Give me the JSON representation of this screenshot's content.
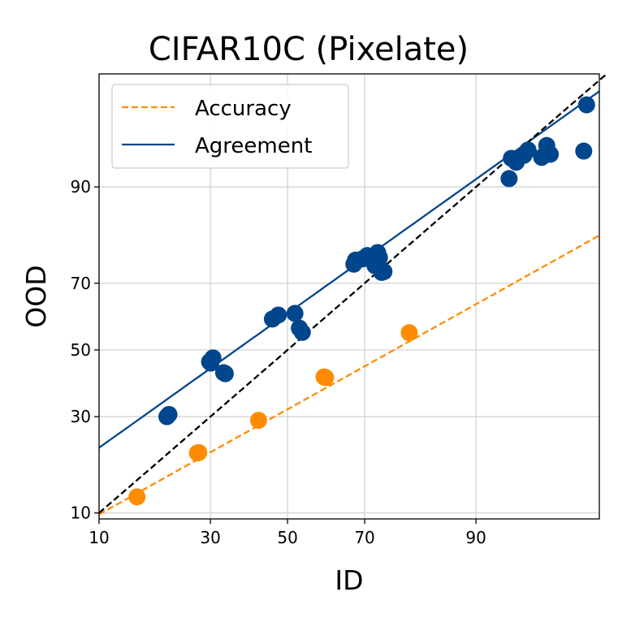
{
  "chart_data": {
    "type": "scatter",
    "title": "CIFAR10C (Pixelate)",
    "xlabel": "ID",
    "ylabel": "OOD",
    "scale": "probit",
    "xticks": [
      10,
      30,
      50,
      70,
      90
    ],
    "yticks": [
      10,
      30,
      50,
      70,
      90
    ],
    "xlim": [
      10,
      98.3
    ],
    "ylim": [
      9.2,
      98.5
    ],
    "grid": true,
    "legend_position": "top-left",
    "legend": [
      {
        "label": "Accuracy",
        "style": "dashed",
        "color": "#ff8c00"
      },
      {
        "label": "Agreement",
        "style": "solid",
        "color": "#00468c"
      }
    ],
    "series": [
      {
        "name": "Accuracy",
        "kind": "points",
        "color": "#ff8c00",
        "points": [
          [
            15.3,
            12.4
          ],
          [
            27.0,
            20.9
          ],
          [
            27.3,
            21.0
          ],
          [
            42.2,
            29.0
          ],
          [
            59.8,
            41.6
          ],
          [
            60.2,
            41.4
          ],
          [
            79.6,
            55.4
          ]
        ]
      },
      {
        "name": "Agreement",
        "kind": "points",
        "color": "#00468c",
        "points": [
          [
            20.6,
            30.0
          ],
          [
            21.0,
            30.6
          ],
          [
            29.8,
            46.3
          ],
          [
            30.6,
            47.5
          ],
          [
            30.1,
            45.9
          ],
          [
            33.6,
            42.6
          ],
          [
            33.2,
            42.9
          ],
          [
            45.9,
            59.6
          ],
          [
            47.5,
            60.8
          ],
          [
            52.0,
            61.3
          ],
          [
            53.2,
            56.8
          ],
          [
            54.0,
            55.5
          ],
          [
            67.4,
            75.0
          ],
          [
            67.8,
            76.0
          ],
          [
            69.5,
            76.3
          ],
          [
            70.6,
            77.1
          ],
          [
            71.3,
            76.8
          ],
          [
            71.9,
            75.7
          ],
          [
            72.4,
            74.6
          ],
          [
            72.7,
            75.2
          ],
          [
            73.0,
            77.8
          ],
          [
            73.4,
            76.6
          ],
          [
            73.9,
            72.9
          ],
          [
            74.4,
            73.1
          ],
          [
            73.3,
            74.1
          ],
          [
            93.4,
            91.1
          ],
          [
            93.6,
            93.4
          ],
          [
            94.0,
            93.0
          ],
          [
            94.6,
            93.7
          ],
          [
            94.9,
            94.2
          ],
          [
            95.8,
            93.5
          ],
          [
            96.1,
            94.6
          ],
          [
            96.3,
            93.8
          ],
          [
            97.9,
            97.3
          ],
          [
            97.8,
            94.1
          ]
        ]
      },
      {
        "name": "Accuracy fit",
        "kind": "line",
        "style": "dashed",
        "color": "#ff8c00",
        "x": [
          10,
          98.3
        ],
        "y": [
          9.8,
          81.6
        ]
      },
      {
        "name": "Agreement fit",
        "kind": "line",
        "style": "solid",
        "color": "#00468c",
        "x": [
          10,
          98.3
        ],
        "y": [
          22.1,
          97.9
        ]
      },
      {
        "name": "y = x",
        "kind": "line",
        "style": "dashed",
        "color": "#000000",
        "x": [
          10,
          98.5
        ],
        "y": [
          10,
          98.5
        ]
      }
    ]
  }
}
